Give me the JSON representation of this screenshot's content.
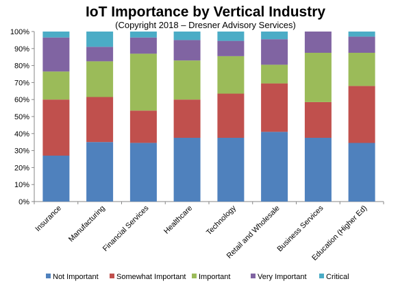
{
  "chart_data": {
    "type": "bar",
    "stacked": true,
    "title": "IoT Importance by Vertical Industry",
    "subtitle": "(Copyright 2018 – Dresner Advisory Services)",
    "categories": [
      "Insurance",
      "Manufacturing",
      "Financial Services",
      "Healthcare",
      "Technology",
      "Retail and Wholesale",
      "Business Services",
      "Education (Higher Ed)"
    ],
    "series": [
      {
        "name": "Not Important",
        "color": "#4f81bd",
        "values": [
          27,
          35,
          34.5,
          37.5,
          37.5,
          41,
          37.5,
          34.5
        ]
      },
      {
        "name": "Somewhat Important",
        "color": "#c0504d",
        "values": [
          33,
          26.5,
          19,
          22.5,
          26,
          28.5,
          21,
          33.5
        ]
      },
      {
        "name": "Important",
        "color": "#9bbb59",
        "values": [
          16.5,
          21,
          33.5,
          23,
          22,
          11,
          29,
          19.5
        ]
      },
      {
        "name": "Very Important",
        "color": "#8064a2",
        "values": [
          20,
          8.5,
          9.5,
          12,
          9,
          15,
          12.5,
          9.5
        ]
      },
      {
        "name": "Critical",
        "color": "#4bacc6",
        "values": [
          3.5,
          9,
          3.5,
          5,
          5.5,
          4.5,
          0,
          3
        ]
      }
    ],
    "ylim": [
      0,
      100
    ],
    "yticks": [
      "0%",
      "10%",
      "20%",
      "30%",
      "40%",
      "50%",
      "60%",
      "70%",
      "80%",
      "90%",
      "100%"
    ],
    "grid": false,
    "legend": "bottom"
  }
}
